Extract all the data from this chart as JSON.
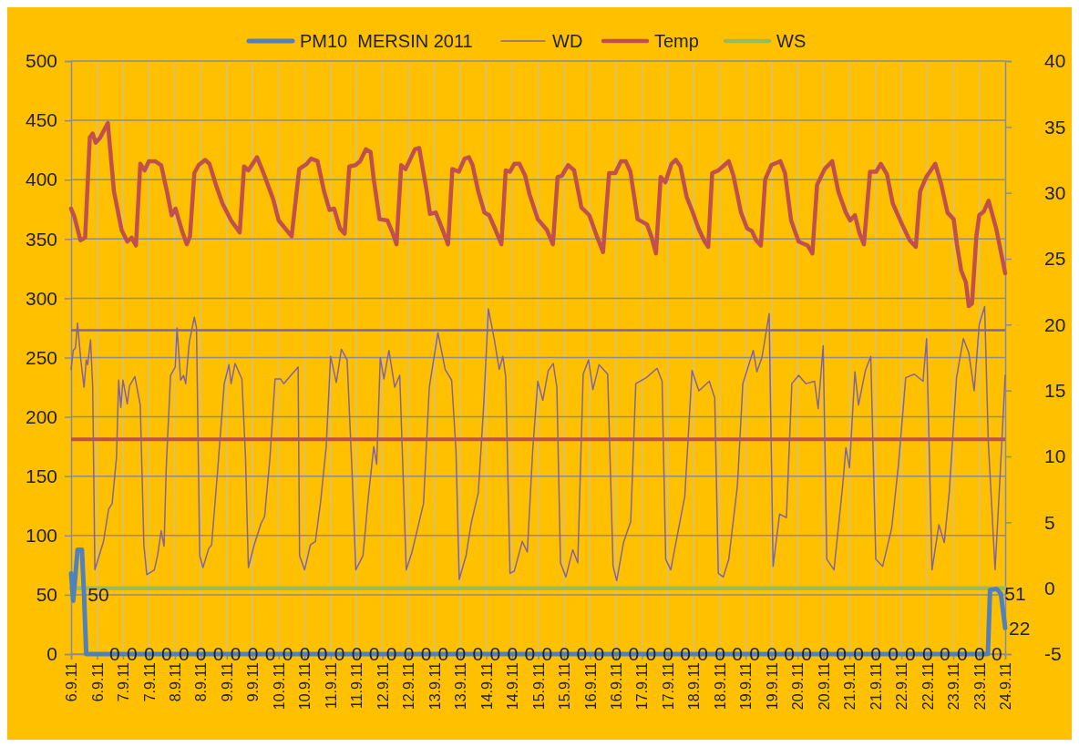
{
  "chart_data": {
    "type": "line",
    "xlim": [
      "2011-09-06T00:00",
      "2011-09-24T00:00"
    ],
    "xticks": [
      {
        "value": "2011-09-06T00:00",
        "label": "6.9.11"
      },
      {
        "value": "2011-09-06T12:00",
        "label": "6.9.11"
      },
      {
        "value": "2011-09-07T00:00",
        "label": "7.9.11"
      },
      {
        "value": "2011-09-07T12:00",
        "label": "7.9.11"
      },
      {
        "value": "2011-09-08T00:00",
        "label": "8.9.11"
      },
      {
        "value": "2011-09-08T12:00",
        "label": "8.9.11"
      },
      {
        "value": "2011-09-09T00:00",
        "label": "9.9.11"
      },
      {
        "value": "2011-09-09T12:00",
        "label": "9.9.11"
      },
      {
        "value": "2011-09-10T00:00",
        "label": "10.9.11"
      },
      {
        "value": "2011-09-10T12:00",
        "label": "10.9.11"
      },
      {
        "value": "2011-09-11T00:00",
        "label": "11.9.11"
      },
      {
        "value": "2011-09-11T12:00",
        "label": "11.9.11"
      },
      {
        "value": "2011-09-12T00:00",
        "label": "12.9.11"
      },
      {
        "value": "2011-09-12T12:00",
        "label": "12.9.11"
      },
      {
        "value": "2011-09-13T00:00",
        "label": "13.9.11"
      },
      {
        "value": "2011-09-13T12:00",
        "label": "13.9.11"
      },
      {
        "value": "2011-09-14T00:00",
        "label": "14.9.11"
      },
      {
        "value": "2011-09-14T12:00",
        "label": "14.9.11"
      },
      {
        "value": "2011-09-15T00:00",
        "label": "15.9.11"
      },
      {
        "value": "2011-09-15T12:00",
        "label": "15.9.11"
      },
      {
        "value": "2011-09-16T00:00",
        "label": "16.9.11"
      },
      {
        "value": "2011-09-16T12:00",
        "label": "16.9.11"
      },
      {
        "value": "2011-09-17T00:00",
        "label": "17.9.11"
      },
      {
        "value": "2011-09-17T12:00",
        "label": "17.9.11"
      },
      {
        "value": "2011-09-18T00:00",
        "label": "18.9.11"
      },
      {
        "value": "2011-09-18T12:00",
        "label": "18.9.11"
      },
      {
        "value": "2011-09-19T00:00",
        "label": "19.9.11"
      },
      {
        "value": "2011-09-19T12:00",
        "label": "19.9.11"
      },
      {
        "value": "2011-09-20T00:00",
        "label": "20.9.11"
      },
      {
        "value": "2011-09-20T12:00",
        "label": "20.9.11"
      },
      {
        "value": "2011-09-21T00:00",
        "label": "21.9.11"
      },
      {
        "value": "2011-09-21T12:00",
        "label": "21.9.11"
      },
      {
        "value": "2011-09-22T00:00",
        "label": "22.9.11"
      },
      {
        "value": "2011-09-22T12:00",
        "label": "22.9.11"
      },
      {
        "value": "2011-09-23T00:00",
        "label": "23.9.11"
      },
      {
        "value": "2011-09-23T12:00",
        "label": "23.9.11"
      },
      {
        "value": "2011-09-24T00:00",
        "label": "24.9.11"
      }
    ],
    "ylim": [
      0,
      500
    ],
    "yticks": [
      0,
      50,
      100,
      150,
      200,
      250,
      300,
      350,
      400,
      450,
      500
    ],
    "y2lim": [
      -5,
      40
    ],
    "y2ticks": [
      -5,
      0,
      5,
      10,
      15,
      20,
      25,
      30,
      35,
      40
    ],
    "grid": true,
    "legend": "top",
    "ref_lines": [
      {
        "axis": "y",
        "value": 273,
        "color": "#8064a2"
      },
      {
        "axis": "y",
        "value": 181,
        "color": "#c0504d"
      }
    ],
    "series": [
      {
        "name": "PM10  MERSIN 2011",
        "color": "#4f81bd",
        "x": [
          "2011-09-06T00:00",
          "2011-09-06T01:00",
          "2011-09-06T03:00",
          "2011-09-06T05:00",
          "2011-09-06T06:00",
          "2011-09-06T07:00",
          "2011-09-06T16:00",
          "2011-09-07T00:00",
          "2011-09-07T08:00",
          "2011-09-07T16:00",
          "2011-09-08T00:00",
          "2011-09-08T08:00",
          "2011-09-08T16:00",
          "2011-09-09T00:00",
          "2011-09-09T08:00",
          "2011-09-09T16:00",
          "2011-09-10T00:00",
          "2011-09-10T08:00",
          "2011-09-10T16:00",
          "2011-09-11T00:00",
          "2011-09-11T08:00",
          "2011-09-11T16:00",
          "2011-09-12T00:00",
          "2011-09-12T08:00",
          "2011-09-12T16:00",
          "2011-09-13T00:00",
          "2011-09-13T08:00",
          "2011-09-13T16:00",
          "2011-09-14T00:00",
          "2011-09-14T08:00",
          "2011-09-14T16:00",
          "2011-09-15T00:00",
          "2011-09-15T08:00",
          "2011-09-15T16:00",
          "2011-09-16T00:00",
          "2011-09-16T08:00",
          "2011-09-16T16:00",
          "2011-09-17T00:00",
          "2011-09-17T08:00",
          "2011-09-17T16:00",
          "2011-09-18T00:00",
          "2011-09-18T08:00",
          "2011-09-18T16:00",
          "2011-09-19T00:00",
          "2011-09-19T08:00",
          "2011-09-19T16:00",
          "2011-09-20T00:00",
          "2011-09-20T08:00",
          "2011-09-20T16:00",
          "2011-09-21T00:00",
          "2011-09-21T08:00",
          "2011-09-21T16:00",
          "2011-09-22T00:00",
          "2011-09-22T08:00",
          "2011-09-22T16:00",
          "2011-09-23T00:00",
          "2011-09-23T08:00",
          "2011-09-23T16:00",
          "2011-09-23T17:00",
          "2011-09-23T20:00",
          "2011-09-23T22:00",
          "2011-09-24T00:00"
        ],
        "values": [
          68,
          45,
          88,
          88,
          50,
          0,
          0,
          0,
          0,
          0,
          0,
          0,
          0,
          0,
          0,
          0,
          0,
          0,
          0,
          0,
          0,
          0,
          0,
          0,
          0,
          0,
          0,
          0,
          0,
          0,
          0,
          0,
          0,
          0,
          0,
          0,
          0,
          0,
          0,
          0,
          0,
          0,
          0,
          0,
          0,
          0,
          0,
          0,
          0,
          0,
          0,
          0,
          0,
          0,
          0,
          0,
          0,
          0,
          54,
          55,
          51,
          22
        ],
        "value_labels": [
          null,
          null,
          null,
          null,
          "50",
          null,
          "0",
          "0",
          "0",
          "0",
          "0",
          "0",
          "0",
          "0",
          "0",
          "0",
          "0",
          "0",
          "0",
          "0",
          "0",
          "0",
          "0",
          "0",
          "0",
          "0",
          "0",
          "0",
          "0",
          "0",
          "0",
          "0",
          "0",
          "0",
          "0",
          "0",
          "0",
          "0",
          "0",
          "0",
          "0",
          "0",
          "0",
          "0",
          "0",
          "0",
          "0",
          "0",
          "0",
          "0",
          "0",
          "0",
          "0",
          "0",
          "0",
          "0",
          "0",
          "0",
          null,
          null,
          "51",
          "22"
        ]
      },
      {
        "name": "WD",
        "color": "#8064a2",
        "x": [
          "2011-09-06T00:00",
          "2011-09-06T01:00",
          "2011-09-06T02:00",
          "2011-09-06T03:00",
          "2011-09-06T04:30",
          "2011-09-06T06:00",
          "2011-09-06T07:00",
          "2011-09-06T07:40",
          "2011-09-06T09:00",
          "2011-09-06T10:00",
          "2011-09-06T11:00",
          "2011-09-06T13:30",
          "2011-09-06T15:00",
          "2011-09-06T17:20",
          "2011-09-06T19:00",
          "2011-09-06T21:00",
          "2011-09-06T22:00",
          "2011-09-06T23:00",
          "2011-09-07T00:00",
          "2011-09-07T02:00",
          "2011-09-07T03:00",
          "2011-09-07T05:30",
          "2011-09-07T08:00",
          "2011-09-07T09:40",
          "2011-09-07T11:00",
          "2011-09-07T14:30",
          "2011-09-07T16:00",
          "2011-09-07T17:40",
          "2011-09-07T19:00",
          "2011-09-07T20:00",
          "2011-09-07T22:00",
          "2011-09-08T00:10",
          "2011-09-08T01:00",
          "2011-09-08T02:40",
          "2011-09-08T04:00",
          "2011-09-08T05:00",
          "2011-09-08T06:40",
          "2011-09-08T09:00",
          "2011-09-08T10:00",
          "2011-09-08T11:30",
          "2011-09-08T13:00",
          "2011-09-08T15:40",
          "2011-09-08T17:00",
          "2011-09-08T20:00",
          "2011-09-08T22:50",
          "2011-09-09T01:00",
          "2011-09-09T02:00",
          "2011-09-09T03:50",
          "2011-09-09T07:00",
          "2011-09-09T08:40",
          "2011-09-09T10:00",
          "2011-09-09T12:40",
          "2011-09-09T15:50",
          "2011-09-09T17:30",
          "2011-09-09T20:00",
          "2011-09-09T22:20",
          "2011-09-10T00:50",
          "2011-09-10T02:20",
          "2011-09-10T05:40",
          "2011-09-10T09:00",
          "2011-09-10T09:40",
          "2011-09-10T12:00",
          "2011-09-10T14:40",
          "2011-09-10T17:00",
          "2011-09-10T19:30",
          "2011-09-10T22:00",
          "2011-09-11T00:00",
          "2011-09-11T02:40",
          "2011-09-11T05:00",
          "2011-09-11T07:40",
          "2011-09-11T10:00",
          "2011-09-11T11:40",
          "2011-09-11T15:00",
          "2011-09-11T17:30",
          "2011-09-11T20:00",
          "2011-09-11T21:20",
          "2011-09-11T23:00",
          "2011-09-12T00:40",
          "2011-09-12T03:00",
          "2011-09-12T05:40",
          "2011-09-12T08:00",
          "2011-09-12T09:40",
          "2011-09-12T11:00",
          "2011-09-12T13:40",
          "2011-09-12T16:00",
          "2011-09-12T19:00",
          "2011-09-12T21:40",
          "2011-09-13T01:40",
          "2011-09-13T05:00",
          "2011-09-13T08:00",
          "2011-09-13T10:00",
          "2011-09-13T11:30",
          "2011-09-13T14:40",
          "2011-09-13T17:00",
          "2011-09-13T20:20",
          "2011-09-13T22:50",
          "2011-09-14T01:00",
          "2011-09-14T03:40",
          "2011-09-14T06:00",
          "2011-09-14T07:40",
          "2011-09-14T09:00",
          "2011-09-14T11:00",
          "2011-09-14T13:00",
          "2011-09-14T16:40",
          "2011-09-14T19:00",
          "2011-09-14T21:30",
          "2011-09-14T23:50",
          "2011-09-15T02:10",
          "2011-09-15T04:40",
          "2011-09-15T07:00",
          "2011-09-15T08:40",
          "2011-09-15T10:20",
          "2011-09-15T12:50",
          "2011-09-15T16:00",
          "2011-09-15T18:20",
          "2011-09-15T20:50",
          "2011-09-15T23:20",
          "2011-09-16T01:20",
          "2011-09-16T04:10",
          "2011-09-16T08:10",
          "2011-09-16T10:40",
          "2011-09-16T12:20",
          "2011-09-16T15:30",
          "2011-09-16T18:50",
          "2011-09-16T21:10",
          "2011-09-17T02:00",
          "2011-09-17T07:00",
          "2011-09-17T09:20",
          "2011-09-17T11:00",
          "2011-09-17T13:20",
          "2011-09-17T16:40",
          "2011-09-17T19:50",
          "2011-09-17T23:10",
          "2011-09-18T02:20",
          "2011-09-18T07:10",
          "2011-09-18T09:40",
          "2011-09-18T11:20",
          "2011-09-18T13:40",
          "2011-09-18T16:10",
          "2011-09-18T20:10",
          "2011-09-18T22:40",
          "2011-09-19T03:30",
          "2011-09-19T05:10",
          "2011-09-19T07:30",
          "2011-09-19T10:50",
          "2011-09-19T12:40",
          "2011-09-19T15:40",
          "2011-09-19T18:50",
          "2011-09-19T21:20",
          "2011-09-20T00:30",
          "2011-09-20T03:50",
          "2011-09-20T07:50",
          "2011-09-20T09:30",
          "2011-09-20T11:50",
          "2011-09-20T13:30",
          "2011-09-20T16:50",
          "2011-09-20T20:50",
          "2011-09-20T22:20",
          "2011-09-21T00:00",
          "2011-09-21T02:30",
          "2011-09-21T04:10",
          "2011-09-21T07:20",
          "2011-09-21T09:50",
          "2011-09-21T12:10",
          "2011-09-21T15:20",
          "2011-09-21T19:30",
          "2011-09-21T22:40",
          "2011-09-22T02:00",
          "2011-09-22T06:00",
          "2011-09-22T10:00",
          "2011-09-22T11:40",
          "2011-09-22T14:10",
          "2011-09-22T17:20",
          "2011-09-22T19:50",
          "2011-09-22T22:10",
          "2011-09-23T01:30",
          "2011-09-23T04:40",
          "2011-09-23T07:10",
          "2011-09-23T09:40",
          "2011-09-23T12:00",
          "2011-09-23T14:30",
          "2011-09-23T16:10",
          "2011-09-23T19:20",
          "2011-09-23T21:40",
          "2011-09-24T00:00"
        ],
        "values": [
          240,
          256,
          258,
          279,
          248,
          225,
          248,
          244,
          265,
          225,
          71,
          86,
          95,
          122,
          127,
          166,
          231,
          208,
          231,
          211,
          226,
          234,
          210,
          92,
          67,
          71,
          83,
          104,
          91,
          157,
          235,
          242,
          275,
          231,
          235,
          228,
          263,
          284,
          275,
          83,
          73,
          89,
          92,
          160,
          228,
          244,
          228,
          245,
          232,
          166,
          73,
          92,
          110,
          116,
          166,
          232,
          232,
          228,
          235,
          242,
          83,
          71,
          92,
          95,
          130,
          175,
          251,
          229,
          257,
          248,
          151,
          71,
          83,
          133,
          175,
          160,
          250,
          232,
          256,
          225,
          235,
          145,
          71,
          86,
          104,
          127,
          225,
          271,
          240,
          231,
          172,
          63,
          83,
          110,
          136,
          210,
          291,
          266,
          240,
          251,
          234,
          68,
          70,
          95,
          86,
          172,
          230,
          214,
          239,
          245,
          225,
          77,
          65,
          88,
          77,
          236,
          248,
          223,
          244,
          236,
          74,
          62,
          94,
          112,
          228,
          233,
          241,
          230,
          80,
          71,
          103,
          133,
          239,
          222,
          230,
          216,
          68,
          65,
          80,
          142,
          228,
          256,
          238,
          250,
          287,
          74,
          118,
          115,
          228,
          235,
          228,
          230,
          207,
          260,
          80,
          71,
          142,
          174,
          157,
          238,
          210,
          239,
          251,
          80,
          74,
          106,
          160,
          233,
          236,
          230,
          266,
          71,
          109,
          94,
          137,
          233,
          266,
          254,
          222,
          278,
          293,
          180,
          71,
          151,
          235
        ]
      },
      {
        "name": "Temp",
        "color": "#c0504d",
        "axis": "y2",
        "x": [
          "2011-09-06T00:00",
          "2011-09-06T01:30",
          "2011-09-06T04:20",
          "2011-09-06T06:30",
          "2011-09-06T08:40",
          "2011-09-06T10:00",
          "2011-09-06T11:20",
          "2011-09-06T13:30",
          "2011-09-06T17:00",
          "2011-09-06T19:50",
          "2011-09-06T23:20",
          "2011-09-07T02:00",
          "2011-09-07T04:00",
          "2011-09-07T06:00",
          "2011-09-07T08:00",
          "2011-09-07T10:00",
          "2011-09-07T12:00",
          "2011-09-07T14:50",
          "2011-09-07T17:40",
          "2011-09-07T20:20",
          "2011-09-07T22:30",
          "2011-09-08T00:20",
          "2011-09-08T03:20",
          "2011-09-08T05:30",
          "2011-09-08T07:00",
          "2011-09-08T09:00",
          "2011-09-08T11:00",
          "2011-09-08T14:00",
          "2011-09-08T16:00",
          "2011-09-08T19:00",
          "2011-09-08T22:00",
          "2011-09-09T02:00",
          "2011-09-09T06:00",
          "2011-09-09T08:00",
          "2011-09-09T10:00",
          "2011-09-09T14:00",
          "2011-09-09T17:00",
          "2011-09-09T21:30",
          "2011-09-10T00:00",
          "2011-09-10T06:00",
          "2011-09-10T09:30",
          "2011-09-10T13:00",
          "2011-09-10T15:00",
          "2011-09-10T18:00",
          "2011-09-10T21:00",
          "2011-09-10T23:30",
          "2011-09-11T01:40",
          "2011-09-11T04:20",
          "2011-09-11T06:30",
          "2011-09-11T08:40",
          "2011-09-11T11:30",
          "2011-09-11T13:40",
          "2011-09-11T16:20",
          "2011-09-11T18:30",
          "2011-09-11T20:00",
          "2011-09-11T22:40",
          "2011-09-12T02:20",
          "2011-09-12T04:20",
          "2011-09-12T06:30",
          "2011-09-12T08:40",
          "2011-09-12T10:40",
          "2011-09-12T15:00",
          "2011-09-12T17:00",
          "2011-09-12T20:30",
          "2011-09-12T22:00",
          "2011-09-13T00:40",
          "2011-09-13T02:50",
          "2011-09-13T06:20",
          "2011-09-13T08:20",
          "2011-09-13T11:20",
          "2011-09-13T14:00",
          "2011-09-13T16:00",
          "2011-09-13T17:40",
          "2011-09-13T20:20",
          "2011-09-13T23:10",
          "2011-09-14T01:20",
          "2011-09-14T04:00",
          "2011-09-14T07:00",
          "2011-09-14T09:00",
          "2011-09-14T11:00",
          "2011-09-14T13:00",
          "2011-09-14T15:20",
          "2011-09-14T18:00",
          "2011-09-14T20:00",
          "2011-09-14T23:50",
          "2011-09-15T04:00",
          "2011-09-15T06:50",
          "2011-09-15T09:00",
          "2011-09-15T11:00",
          "2011-09-15T13:50",
          "2011-09-15T16:40",
          "2011-09-15T20:00",
          "2011-09-15T23:40",
          "2011-09-16T03:10",
          "2011-09-16T06:00",
          "2011-09-16T08:50",
          "2011-09-16T11:40",
          "2011-09-16T14:20",
          "2011-09-16T16:30",
          "2011-09-16T18:40",
          "2011-09-16T22:00",
          "2011-09-17T02:20",
          "2011-09-17T04:20",
          "2011-09-17T06:30",
          "2011-09-17T08:40",
          "2011-09-17T10:50",
          "2011-09-17T13:40",
          "2011-09-17T15:40",
          "2011-09-17T17:50",
          "2011-09-17T20:40",
          "2011-09-17T23:20",
          "2011-09-18T02:10",
          "2011-09-18T05:00",
          "2011-09-18T06:40",
          "2011-09-18T08:30",
          "2011-09-18T11:20",
          "2011-09-18T16:10",
          "2011-09-18T18:20",
          "2011-09-18T21:50",
          "2011-09-19T00:40",
          "2011-09-19T02:50",
          "2011-09-19T04:50",
          "2011-09-19T07:00",
          "2011-09-19T09:00",
          "2011-09-19T11:50",
          "2011-09-19T16:00",
          "2011-09-19T18:10",
          "2011-09-19T21:00",
          "2011-09-20T00:30",
          "2011-09-20T04:40",
          "2011-09-20T06:50",
          "2011-09-20T09:00",
          "2011-09-20T12:30",
          "2011-09-20T16:00",
          "2011-09-20T18:50",
          "2011-09-20T22:20",
          "2011-09-21T00:20",
          "2011-09-21T02:30",
          "2011-09-21T04:40",
          "2011-09-21T06:40",
          "2011-09-21T09:30",
          "2011-09-21T12:20",
          "2011-09-21T14:30",
          "2011-09-21T17:20",
          "2011-09-21T20:00",
          "2011-09-22T00:20",
          "2011-09-22T03:50",
          "2011-09-22T06:40",
          "2011-09-22T08:40",
          "2011-09-22T11:30",
          "2011-09-22T15:40",
          "2011-09-22T18:30",
          "2011-09-22T21:20",
          "2011-09-23T00:10",
          "2011-09-23T01:40",
          "2011-09-23T03:40",
          "2011-09-23T05:50",
          "2011-09-23T07:10",
          "2011-09-23T08:40",
          "2011-09-23T10:40",
          "2011-09-23T12:00",
          "2011-09-23T14:10",
          "2011-09-23T16:20",
          "2011-09-23T19:50",
          "2011-09-24T00:00"
        ],
        "values": [
          28.8,
          28.2,
          26.4,
          26.6,
          34.2,
          34.5,
          33.8,
          34.2,
          35.3,
          30.1,
          27.2,
          26.3,
          26.6,
          26.0,
          32.2,
          31.7,
          32.4,
          32.4,
          32.1,
          30.1,
          28.3,
          28.8,
          27.1,
          26.1,
          26.7,
          31.5,
          32.1,
          32.5,
          32.2,
          30.6,
          29.2,
          27.9,
          27.0,
          32.0,
          31.7,
          32.7,
          31.5,
          29.5,
          27.9,
          26.7,
          31.8,
          32.2,
          32.6,
          32.4,
          30.1,
          28.7,
          28.8,
          27.3,
          26.9,
          32.0,
          32.1,
          32.4,
          33.3,
          33.1,
          31.0,
          28.0,
          27.9,
          27.1,
          26.1,
          32.1,
          31.8,
          33.3,
          33.4,
          30.1,
          28.4,
          28.5,
          27.6,
          26.1,
          31.8,
          31.6,
          32.6,
          32.7,
          32.1,
          30.1,
          28.5,
          28.3,
          27.3,
          26.1,
          31.7,
          31.6,
          32.2,
          32.2,
          31.3,
          29.9,
          28.0,
          27.2,
          26.1,
          31.2,
          31.3,
          32.1,
          31.7,
          28.9,
          28.3,
          26.7,
          25.5,
          31.5,
          31.5,
          32.4,
          32.4,
          31.6,
          28.0,
          27.6,
          26.7,
          25.4,
          31.2,
          30.8,
          32.2,
          32.5,
          32.0,
          29.7,
          28.6,
          27.3,
          26.3,
          25.9,
          31.5,
          31.7,
          32.4,
          31.3,
          28.5,
          27.3,
          27.1,
          26.4,
          26.0,
          31.0,
          32.1,
          32.4,
          31.5,
          27.9,
          26.3,
          26.0,
          25.4,
          30.6,
          31.8,
          32.4,
          30.1,
          28.5,
          27.9,
          28.3,
          26.9,
          26.1,
          31.6,
          31.6,
          32.2,
          31.4,
          29.2,
          27.6,
          26.4,
          25.9,
          30.1,
          31.2,
          32.2,
          30.6,
          28.5,
          28.0,
          26.1,
          24.1,
          23.2,
          21.4,
          21.6,
          26.7,
          28.3,
          28.6,
          29.4,
          27.3,
          23.9
        ]
      },
      {
        "name": "WS",
        "color": "#9bbb59",
        "axis": "y2",
        "x": [
          "2011-09-06T00:00",
          "2011-09-24T00:00"
        ],
        "values": [
          0,
          0
        ]
      }
    ]
  }
}
